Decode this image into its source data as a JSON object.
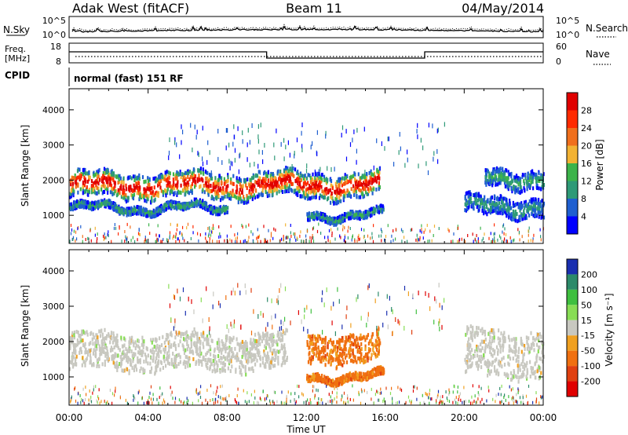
{
  "header": {
    "station": "Adak West (fitACF)",
    "beam": "Beam 11",
    "date": "04/May/2014"
  },
  "noise_panel": {
    "left_label": "N.Sky",
    "right_label": "N.Search",
    "left_ticks": [
      "10^5",
      "10^0"
    ],
    "right_ticks": [
      "10^5",
      "10^0"
    ]
  },
  "freq_panel": {
    "left_label": "Freq.",
    "left_unit": "[MHz]",
    "left_ticks": [
      "18",
      "8"
    ],
    "right_label": "Nave",
    "right_ticks": [
      "60",
      "0"
    ]
  },
  "cpid": {
    "label": "CPID",
    "text": "normal (fast) 151 RF"
  },
  "colors": {
    "power": [
      "#0000ff",
      "#1f5fd0",
      "#2e9a77",
      "#3cb34a",
      "#f2b233",
      "#f06f1c",
      "#ff2a00",
      "#e00000"
    ],
    "velocity": [
      "#1a2fb0",
      "#2c8a6a",
      "#3fbf3f",
      "#88dd55",
      "#c8c8c0",
      "#f0a020",
      "#f07010",
      "#e04010",
      "#e00000"
    ]
  },
  "chart_data": [
    {
      "type": "heatmap",
      "title": "",
      "ylabel": "Slant Range [km]",
      "xlabel": "",
      "ylim": [
        200,
        4600
      ],
      "yticks": [
        "1000",
        "2000",
        "3000",
        "4000"
      ],
      "xlim": [
        0,
        24
      ],
      "colorbar": {
        "label": "Power [dB]",
        "ticks": [
          "4",
          "8",
          "12",
          "16",
          "20",
          "24",
          "28"
        ],
        "range": [
          0,
          32
        ]
      },
      "features": [
        {
          "band": "main echo",
          "start_hour": 0,
          "end_hour": 15.7,
          "range_km": [
            1500,
            2200
          ],
          "peak_db": 30
        },
        {
          "band": "lower echo",
          "start_hour": 0,
          "end_hour": 8,
          "range_km": [
            1100,
            1300
          ],
          "peak_db": 10
        },
        {
          "band": "lower echo",
          "start_hour": 12,
          "end_hour": 15.9,
          "range_km": [
            900,
            1100
          ],
          "peak_db": 10
        },
        {
          "band": "evening echo",
          "start_hour": 20,
          "end_hour": 24,
          "range_km": [
            1000,
            1500
          ],
          "peak_db": 8
        },
        {
          "band": "evening echo",
          "start_hour": 21,
          "end_hour": 24,
          "range_km": [
            1800,
            2300
          ],
          "peak_db": 10
        }
      ]
    },
    {
      "type": "heatmap",
      "title": "",
      "ylabel": "Slant Range [km]",
      "xlabel": "Time UT",
      "ylim": [
        200,
        4600
      ],
      "yticks": [
        "1000",
        "2000",
        "3000",
        "4000"
      ],
      "xlim": [
        0,
        24
      ],
      "xticks": [
        "00:00",
        "04:00",
        "08:00",
        "12:00",
        "16:00",
        "20:00",
        "00:00"
      ],
      "colorbar": {
        "label": "Velocity [m s⁻¹]",
        "ticks": [
          "200",
          "100",
          "50",
          "15",
          "-15",
          "-50",
          "-100",
          "-200"
        ]
      },
      "features": [
        {
          "band": "ground scatter",
          "start_hour": 0,
          "end_hour": 11,
          "range_km": [
            1200,
            2200
          ],
          "velocity": 0
        },
        {
          "band": "negative flow",
          "start_hour": 12,
          "end_hour": 15.7,
          "range_km": [
            1400,
            2200
          ],
          "velocity": -50
        },
        {
          "band": "negative flow",
          "start_hour": 12,
          "end_hour": 15.9,
          "range_km": [
            900,
            1100
          ],
          "velocity": -50
        },
        {
          "band": "ground scatter",
          "start_hour": 20,
          "end_hour": 24,
          "range_km": [
            1000,
            2300
          ],
          "velocity": 0
        }
      ]
    }
  ]
}
